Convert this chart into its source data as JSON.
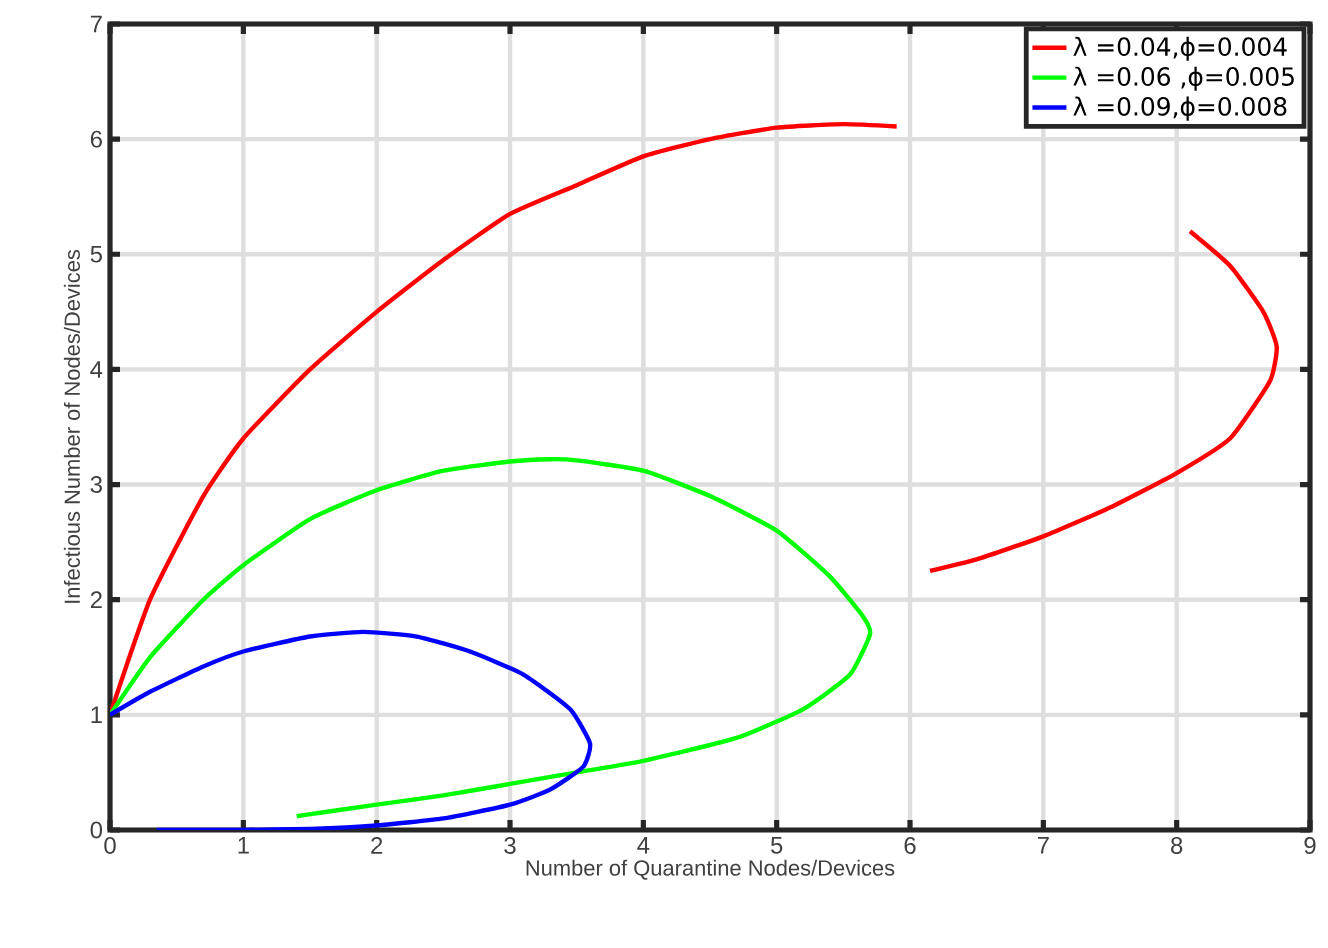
{
  "chart_data": {
    "type": "line",
    "xlabel": "Number of Quarantine Nodes/Devices",
    "ylabel": "Infectious Number of Nodes/Devices",
    "xlim": [
      0,
      9
    ],
    "ylim": [
      0,
      7
    ],
    "xticks": [
      0,
      1,
      2,
      3,
      4,
      5,
      6,
      7,
      8,
      9
    ],
    "yticks": [
      0,
      1,
      2,
      3,
      4,
      5,
      6,
      7
    ],
    "grid": true,
    "legend": "top right",
    "line_style": "solid",
    "marker": "none",
    "series": [
      {
        "name": "λ =0.04,ϕ=0.004",
        "color": "#ff0000",
        "x": [
          0,
          0.3,
          0.7,
          1,
          1.5,
          2,
          2.5,
          3,
          3.5,
          4,
          4.5,
          5,
          5.5,
          5.9,
          6.5,
          7,
          7.5,
          8.1,
          8.4,
          8.65,
          8.75,
          8.7,
          8.4,
          8,
          7.5,
          7,
          6.5,
          6.15
        ],
        "values": [
          1,
          2,
          2.9,
          3.4,
          4.0,
          4.5,
          4.95,
          5.35,
          5.6,
          5.85,
          6.0,
          6.1,
          6.13,
          6.11,
          null,
          null,
          null,
          5.2,
          4.9,
          4.5,
          4.2,
          3.9,
          3.4,
          3.1,
          2.8,
          2.55,
          2.35,
          2.25
        ]
      },
      {
        "name": "λ =0.06 ,ϕ=0.005",
        "color": "#00ff00",
        "x": [
          0,
          0.3,
          0.7,
          1,
          1.5,
          2,
          2.5,
          3,
          3.3,
          3.5,
          4,
          4.5,
          5,
          5.4,
          5.65,
          5.7,
          5.55,
          5.2,
          4.7,
          4,
          3.5,
          3,
          2.5,
          2,
          1.4
        ],
        "values": [
          1,
          1.5,
          2.0,
          2.3,
          2.7,
          2.95,
          3.12,
          3.2,
          3.22,
          3.21,
          3.12,
          2.9,
          2.6,
          2.2,
          1.85,
          1.7,
          1.35,
          1.05,
          0.8,
          0.6,
          0.5,
          0.4,
          0.3,
          0.22,
          0.12
        ]
      },
      {
        "name": "λ =0.09,ϕ=0.008",
        "color": "#0000ff",
        "x": [
          0,
          0.3,
          0.7,
          1,
          1.5,
          1.9,
          2.3,
          2.7,
          3.1,
          3.45,
          3.6,
          3.55,
          3.3,
          3,
          2.5,
          2,
          1.5,
          1,
          0.35
        ],
        "values": [
          1,
          1.2,
          1.42,
          1.55,
          1.68,
          1.72,
          1.68,
          1.55,
          1.35,
          1.05,
          0.75,
          0.55,
          0.35,
          0.22,
          0.1,
          0.04,
          0.01,
          0,
          0
        ]
      }
    ]
  }
}
